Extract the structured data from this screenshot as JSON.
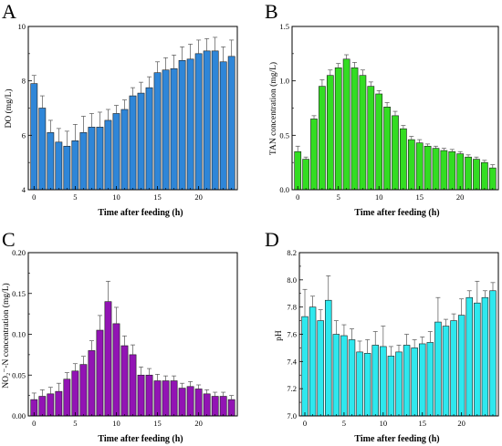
{
  "chart_data": [
    {
      "panel_label": "A",
      "type": "bar",
      "xlabel": "Time after feeding (h)",
      "ylabel": "DO (mg/L)",
      "ylim": [
        4,
        10
      ],
      "yticks": [
        "4",
        "6",
        "8",
        "10"
      ],
      "yticks_values": [
        4,
        6,
        8,
        10
      ],
      "xticks": [
        "0",
        "5",
        "10",
        "15",
        "20"
      ],
      "xticks_values": [
        0,
        5,
        10,
        15,
        20
      ],
      "xlim": [
        -0.7,
        24.7
      ],
      "bar_color": "#2f86d8",
      "x": [
        0,
        1,
        2,
        3,
        4,
        5,
        6,
        7,
        8,
        9,
        10,
        11,
        12,
        13,
        14,
        15,
        16,
        17,
        18,
        19,
        20,
        21,
        22,
        23,
        24
      ],
      "values": [
        7.9,
        7.0,
        6.1,
        5.75,
        5.6,
        5.8,
        6.1,
        6.3,
        6.3,
        6.55,
        6.8,
        6.95,
        7.45,
        7.55,
        7.75,
        8.3,
        8.4,
        8.45,
        8.75,
        8.8,
        9.0,
        9.1,
        9.1,
        8.7,
        8.9
      ],
      "errors": [
        0.3,
        0.45,
        0.45,
        0.5,
        0.55,
        0.6,
        0.6,
        0.5,
        0.55,
        0.4,
        0.3,
        0.35,
        0.3,
        0.4,
        0.4,
        0.4,
        0.45,
        0.5,
        0.5,
        0.55,
        0.5,
        0.45,
        0.5,
        0.55,
        0.6
      ]
    },
    {
      "panel_label": "B",
      "type": "bar",
      "xlabel": "Time after feeding (h)",
      "ylabel": "TAN concentration (mg/L)",
      "ylim": [
        0,
        1.5
      ],
      "yticks": [
        "0.0",
        "0.5",
        "1.0",
        "1.5"
      ],
      "yticks_values": [
        0,
        0.5,
        1.0,
        1.5
      ],
      "xticks": [
        "0",
        "5",
        "10",
        "15",
        "20"
      ],
      "xticks_values": [
        0,
        5,
        10,
        15,
        20
      ],
      "xlim": [
        -0.7,
        24.7
      ],
      "bar_color": "#33dd22",
      "x": [
        0,
        1,
        2,
        3,
        4,
        5,
        6,
        7,
        8,
        9,
        10,
        11,
        12,
        13,
        14,
        15,
        16,
        17,
        18,
        19,
        20,
        21,
        22,
        23,
        24
      ],
      "values": [
        0.35,
        0.28,
        0.65,
        0.95,
        1.05,
        1.12,
        1.2,
        1.12,
        1.05,
        0.95,
        0.88,
        0.76,
        0.68,
        0.56,
        0.46,
        0.43,
        0.4,
        0.38,
        0.36,
        0.35,
        0.33,
        0.3,
        0.28,
        0.25,
        0.2
      ],
      "errors": [
        0.05,
        0.02,
        0.03,
        0.06,
        0.05,
        0.04,
        0.04,
        0.05,
        0.05,
        0.04,
        0.03,
        0.04,
        0.04,
        0.03,
        0.03,
        0.03,
        0.02,
        0.02,
        0.02,
        0.02,
        0.02,
        0.02,
        0.02,
        0.02,
        0.03
      ]
    },
    {
      "panel_label": "C",
      "type": "bar",
      "xlabel": "Time after feeding (h)",
      "ylabel": "NO₂⁻-N concentration (mg/L)",
      "ylim": [
        0,
        0.2
      ],
      "yticks": [
        "0.00",
        "0.05",
        "0.10",
        "0.15",
        "0.20"
      ],
      "yticks_values": [
        0,
        0.05,
        0.1,
        0.15,
        0.2
      ],
      "xticks": [
        "0",
        "5",
        "10",
        "15",
        "20"
      ],
      "xticks_values": [
        0,
        5,
        10,
        15,
        20
      ],
      "xlim": [
        -0.7,
        24.7
      ],
      "bar_color": "#9214b4",
      "x": [
        0,
        1,
        2,
        3,
        4,
        5,
        6,
        7,
        8,
        9,
        10,
        11,
        12,
        13,
        14,
        15,
        16,
        17,
        18,
        19,
        20,
        21,
        22,
        23,
        24
      ],
      "values": [
        0.02,
        0.024,
        0.027,
        0.03,
        0.045,
        0.055,
        0.063,
        0.08,
        0.105,
        0.14,
        0.113,
        0.086,
        0.075,
        0.05,
        0.05,
        0.043,
        0.043,
        0.043,
        0.034,
        0.036,
        0.033,
        0.027,
        0.024,
        0.024,
        0.02
      ],
      "errors": [
        0.008,
        0.008,
        0.008,
        0.01,
        0.008,
        0.009,
        0.01,
        0.012,
        0.018,
        0.025,
        0.02,
        0.012,
        0.012,
        0.01,
        0.008,
        0.008,
        0.006,
        0.006,
        0.006,
        0.006,
        0.005,
        0.005,
        0.005,
        0.005,
        0.005
      ]
    },
    {
      "panel_label": "D",
      "type": "bar",
      "xlabel": "Time after feeding (h)",
      "ylabel": "pH",
      "ylim": [
        7.0,
        8.2
      ],
      "yticks": [
        "7.0",
        "7.2",
        "7.4",
        "7.6",
        "7.8",
        "8.0",
        "8.2"
      ],
      "yticks_values": [
        7.0,
        7.2,
        7.4,
        7.6,
        7.8,
        8.0,
        8.2
      ],
      "xticks": [
        "0",
        "5",
        "10",
        "15",
        "20"
      ],
      "xticks_values": [
        0,
        5,
        10,
        15,
        20
      ],
      "xlim": [
        -0.7,
        24.7
      ],
      "bar_color": "#2ee8ee",
      "x": [
        0,
        1,
        2,
        3,
        4,
        5,
        6,
        7,
        8,
        9,
        10,
        11,
        12,
        13,
        14,
        15,
        16,
        17,
        18,
        19,
        20,
        21,
        22,
        23,
        24
      ],
      "values": [
        7.73,
        7.8,
        7.7,
        7.85,
        7.6,
        7.59,
        7.56,
        7.47,
        7.46,
        7.52,
        7.51,
        7.44,
        7.47,
        7.52,
        7.5,
        7.53,
        7.54,
        7.69,
        7.66,
        7.7,
        7.74,
        7.87,
        7.83,
        7.87,
        7.92
      ],
      "errors": [
        0.2,
        0.08,
        0.08,
        0.18,
        0.1,
        0.08,
        0.08,
        0.08,
        0.1,
        0.1,
        0.15,
        0.07,
        0.05,
        0.08,
        0.06,
        0.05,
        0.08,
        0.18,
        0.05,
        0.05,
        0.12,
        0.05,
        0.16,
        0.05,
        0.06
      ]
    }
  ]
}
